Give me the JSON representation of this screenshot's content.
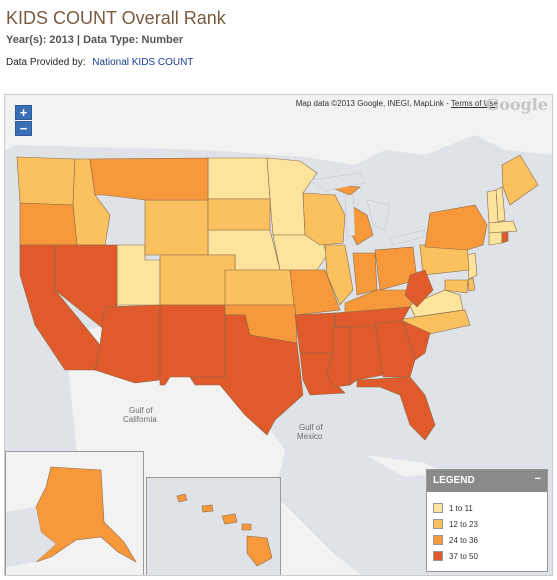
{
  "header": {
    "title": "KIDS COUNT Overall Rank",
    "subtitle": "Year(s): 2013 | Data Type: Number",
    "provider_label": "Data Provided by:",
    "provider_link": "National KIDS COUNT"
  },
  "map": {
    "attribution": "Map data ©2013 Google, INEGI, MapLink -",
    "terms": "Terms of Use",
    "google_logo": "Google",
    "zoom_in": "+",
    "zoom_out": "−",
    "labels": {
      "gulf_ca_1": "Gulf of",
      "gulf_ca_2": "California",
      "gulf_mx_1": "Gulf of",
      "gulf_mx_2": "Mexico"
    }
  },
  "legend": {
    "title": "LEGEND",
    "collapse": "−",
    "items": [
      {
        "label": "1 to 11",
        "color": "#fde49c"
      },
      {
        "label": "12 to 23",
        "color": "#fbc15e"
      },
      {
        "label": "24 to 36",
        "color": "#f7993a"
      },
      {
        "label": "37 to 50",
        "color": "#e05a2b"
      }
    ]
  },
  "colors": {
    "water": "#dfe2e6",
    "land": "#f2f2f2",
    "border": "#8a6a4a"
  }
}
